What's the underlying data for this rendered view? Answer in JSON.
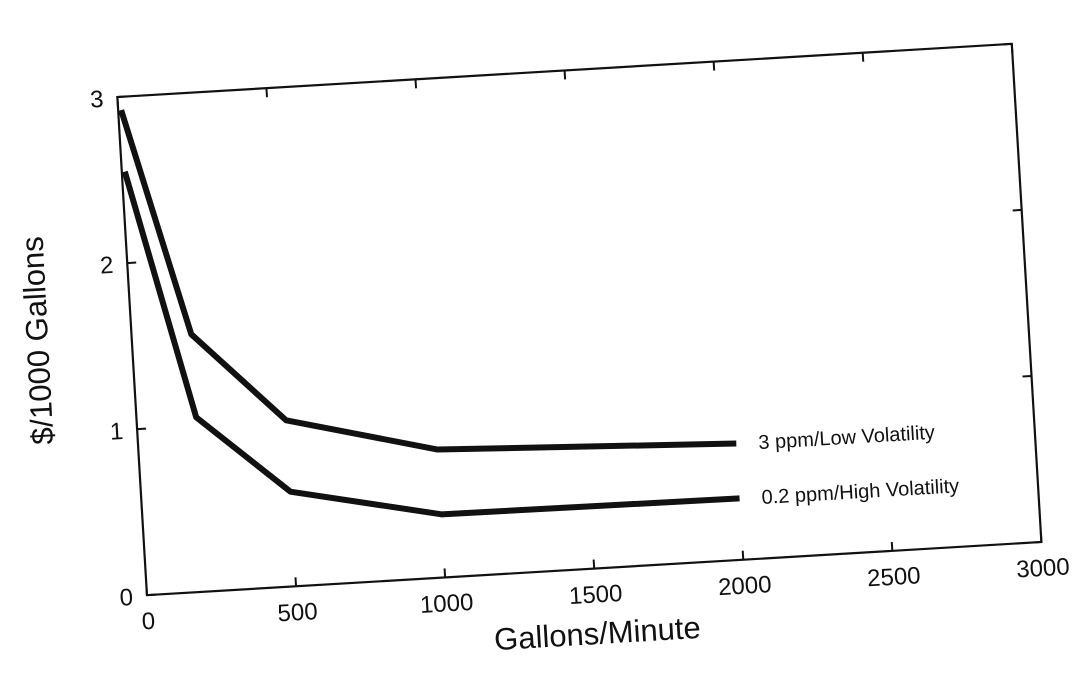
{
  "chart_data": {
    "type": "line",
    "title": "",
    "xlabel": "Gallons/Minute",
    "ylabel": "$/1000 Gallons",
    "xlim": [
      0,
      3000
    ],
    "ylim": [
      0,
      3
    ],
    "x_ticks": [
      "0",
      "500",
      "1000",
      "1500",
      "2000",
      "2500",
      "3000"
    ],
    "y_ticks": [
      "0",
      "1",
      "2",
      "3"
    ],
    "grid": false,
    "series": [
      {
        "name": "3 ppm/Low Volatility",
        "x": [
          10,
          200,
          500,
          1000,
          2000
        ],
        "y": [
          2.92,
          1.55,
          1.0,
          0.77,
          0.7
        ]
      },
      {
        "name": "0.2 ppm/High Volatility",
        "x": [
          10,
          200,
          500,
          1000,
          2000
        ],
        "y": [
          2.55,
          1.05,
          0.57,
          0.38,
          0.37
        ]
      }
    ]
  }
}
